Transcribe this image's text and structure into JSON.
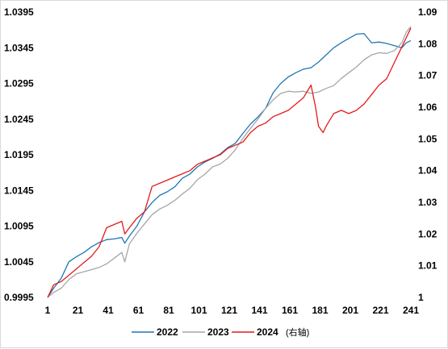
{
  "chart_data": {
    "type": "line",
    "x_ticks": [
      "1",
      "21",
      "41",
      "61",
      "81",
      "101",
      "121",
      "141",
      "161",
      "181",
      "201",
      "221",
      "241"
    ],
    "x_range": [
      1,
      241
    ],
    "y_left": {
      "range": [
        0.9995,
        1.0395
      ],
      "ticks": [
        "0.9995",
        "1.0045",
        "1.0095",
        "1.0145",
        "1.0195",
        "1.0245",
        "1.0295",
        "1.0345",
        "1.0395"
      ]
    },
    "y_right": {
      "range": [
        1,
        1.09
      ],
      "ticks": [
        "1",
        "1.01",
        "1.02",
        "1.03",
        "1.04",
        "1.05",
        "1.06",
        "1.07",
        "1.08",
        "1.09"
      ]
    },
    "grid": false,
    "legend_position": "bottom",
    "series": [
      {
        "name": "2022",
        "axis": "left",
        "color": "#1f77b4",
        "points": [
          [
            1,
            0.9995
          ],
          [
            5,
            1.0008
          ],
          [
            10,
            1.0022
          ],
          [
            15,
            1.0045
          ],
          [
            20,
            1.0052
          ],
          [
            25,
            1.0058
          ],
          [
            30,
            1.0066
          ],
          [
            35,
            1.0072
          ],
          [
            40,
            1.0076
          ],
          [
            45,
            1.0077
          ],
          [
            50,
            1.0079
          ],
          [
            52,
            1.0071
          ],
          [
            55,
            1.0081
          ],
          [
            60,
            1.0095
          ],
          [
            65,
            1.0115
          ],
          [
            70,
            1.0128
          ],
          [
            75,
            1.0138
          ],
          [
            80,
            1.0143
          ],
          [
            85,
            1.015
          ],
          [
            90,
            1.0162
          ],
          [
            95,
            1.0168
          ],
          [
            100,
            1.0178
          ],
          [
            105,
            1.0185
          ],
          [
            110,
            1.019
          ],
          [
            115,
            1.0196
          ],
          [
            120,
            1.0205
          ],
          [
            125,
            1.0211
          ],
          [
            130,
            1.0225
          ],
          [
            135,
            1.0238
          ],
          [
            140,
            1.0248
          ],
          [
            145,
            1.026
          ],
          [
            150,
            1.0282
          ],
          [
            155,
            1.0295
          ],
          [
            160,
            1.0304
          ],
          [
            165,
            1.031
          ],
          [
            170,
            1.0315
          ],
          [
            175,
            1.0317
          ],
          [
            180,
            1.0325
          ],
          [
            185,
            1.0335
          ],
          [
            190,
            1.0345
          ],
          [
            195,
            1.0352
          ],
          [
            200,
            1.0358
          ],
          [
            205,
            1.0364
          ],
          [
            210,
            1.0365
          ],
          [
            215,
            1.0352
          ],
          [
            220,
            1.0353
          ],
          [
            225,
            1.0351
          ],
          [
            230,
            1.0348
          ],
          [
            235,
            1.0345
          ],
          [
            238,
            1.0352
          ],
          [
            241,
            1.0355
          ]
        ]
      },
      {
        "name": "2023",
        "axis": "left",
        "color": "#a6a6a6",
        "points": [
          [
            1,
            0.9995
          ],
          [
            5,
            1.0002
          ],
          [
            10,
            1.0008
          ],
          [
            15,
            1.002
          ],
          [
            20,
            1.0028
          ],
          [
            25,
            1.0031
          ],
          [
            30,
            1.0034
          ],
          [
            35,
            1.0037
          ],
          [
            40,
            1.0042
          ],
          [
            45,
            1.005
          ],
          [
            50,
            1.0058
          ],
          [
            52,
            1.0045
          ],
          [
            55,
            1.007
          ],
          [
            60,
            1.0085
          ],
          [
            65,
            1.0098
          ],
          [
            70,
            1.0111
          ],
          [
            75,
            1.0119
          ],
          [
            80,
            1.0124
          ],
          [
            85,
            1.0131
          ],
          [
            90,
            1.014
          ],
          [
            95,
            1.0148
          ],
          [
            100,
            1.016
          ],
          [
            105,
            1.0168
          ],
          [
            110,
            1.0178
          ],
          [
            115,
            1.0182
          ],
          [
            120,
            1.019
          ],
          [
            125,
            1.0202
          ],
          [
            130,
            1.0218
          ],
          [
            135,
            1.0232
          ],
          [
            140,
            1.0245
          ],
          [
            145,
            1.026
          ],
          [
            150,
            1.0272
          ],
          [
            155,
            1.0281
          ],
          [
            160,
            1.0284
          ],
          [
            165,
            1.0283
          ],
          [
            170,
            1.0284
          ],
          [
            175,
            1.0281
          ],
          [
            180,
            1.0283
          ],
          [
            185,
            1.0288
          ],
          [
            190,
            1.0292
          ],
          [
            195,
            1.0302
          ],
          [
            200,
            1.031
          ],
          [
            205,
            1.0318
          ],
          [
            210,
            1.0328
          ],
          [
            215,
            1.0335
          ],
          [
            220,
            1.0338
          ],
          [
            225,
            1.0337
          ],
          [
            230,
            1.0341
          ],
          [
            235,
            1.0352
          ],
          [
            238,
            1.0367
          ],
          [
            241,
            1.0375
          ]
        ]
      },
      {
        "name": "2024 (右轴)",
        "axis": "right",
        "color": "#e41a1c",
        "points": [
          [
            1,
            1.0
          ],
          [
            5,
            1.004
          ],
          [
            10,
            1.005
          ],
          [
            15,
            1.007
          ],
          [
            20,
            1.009
          ],
          [
            25,
            1.011
          ],
          [
            30,
            1.013
          ],
          [
            35,
            1.016
          ],
          [
            40,
            1.022
          ],
          [
            45,
            1.023
          ],
          [
            50,
            1.024
          ],
          [
            52,
            1.02
          ],
          [
            55,
            1.022
          ],
          [
            60,
            1.025
          ],
          [
            65,
            1.027
          ],
          [
            70,
            1.035
          ],
          [
            75,
            1.036
          ],
          [
            80,
            1.037
          ],
          [
            85,
            1.038
          ],
          [
            90,
            1.039
          ],
          [
            95,
            1.04
          ],
          [
            100,
            1.042
          ],
          [
            105,
            1.043
          ],
          [
            110,
            1.044
          ],
          [
            115,
            1.045
          ],
          [
            120,
            1.047
          ],
          [
            125,
            1.048
          ],
          [
            130,
            1.049
          ],
          [
            135,
            1.052
          ],
          [
            140,
            1.054
          ],
          [
            145,
            1.055
          ],
          [
            150,
            1.057
          ],
          [
            155,
            1.058
          ],
          [
            160,
            1.059
          ],
          [
            165,
            1.061
          ],
          [
            170,
            1.063
          ],
          [
            175,
            1.067
          ],
          [
            178,
            1.06
          ],
          [
            180,
            1.054
          ],
          [
            183,
            1.052
          ],
          [
            185,
            1.054
          ],
          [
            190,
            1.058
          ],
          [
            195,
            1.059
          ],
          [
            200,
            1.058
          ],
          [
            205,
            1.059
          ],
          [
            210,
            1.061
          ],
          [
            215,
            1.064
          ],
          [
            220,
            1.067
          ],
          [
            225,
            1.069
          ],
          [
            230,
            1.074
          ],
          [
            232,
            1.076
          ],
          [
            235,
            1.079
          ],
          [
            238,
            1.082
          ],
          [
            241,
            1.085
          ]
        ]
      }
    ]
  }
}
